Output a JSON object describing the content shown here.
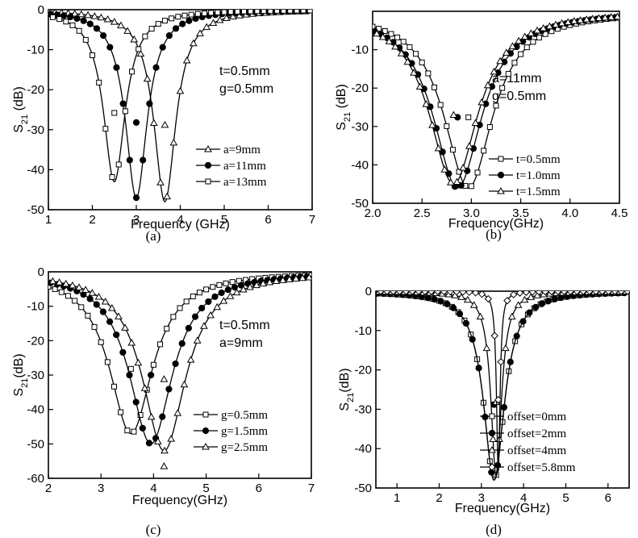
{
  "chart_data": [
    {
      "type": "line",
      "caption": "(a)",
      "xlabel": "Frequency (GHz)",
      "ylabel": "S21 (dB)",
      "ylabel_main": "S",
      "ylabel_sub": "21",
      "ylabel_rest": " (dB)",
      "xlim": [
        1,
        7
      ],
      "ylim": [
        -50,
        0
      ],
      "xticks": [
        1,
        2,
        3,
        4,
        5,
        6,
        7
      ],
      "yticks": [
        0,
        -10,
        -20,
        -30,
        -40,
        -50
      ],
      "annotations": [
        "t=0.5mm",
        "g=0.5mm"
      ],
      "legend_position": "lower-right",
      "series": [
        {
          "name": "a=9mm",
          "marker": "triangle-open",
          "f0": 3.65,
          "depth": 48,
          "gamma": 0.3
        },
        {
          "name": "a=11mm",
          "marker": "circle-filled",
          "f0": 3.0,
          "depth": 47,
          "gamma": 0.3
        },
        {
          "name": "a=13mm",
          "marker": "square-open",
          "f0": 2.5,
          "depth": 43,
          "gamma": 0.3
        }
      ]
    },
    {
      "type": "line",
      "caption": "(b)",
      "xlabel": "Frequency(GHz)",
      "ylabel": "S21 (dB)",
      "ylabel_main": "S",
      "ylabel_sub": "21",
      "ylabel_rest": " (dB)",
      "xlim": [
        2.0,
        4.5
      ],
      "ylim": [
        -50,
        0
      ],
      "xticks": [
        2.0,
        2.5,
        3.0,
        3.5,
        4.0,
        4.5
      ],
      "xtick_labels": [
        "2.0",
        "2.5",
        "3.0",
        "3.5",
        "4.0",
        "4.5"
      ],
      "yticks": [
        -10,
        -20,
        -30,
        -40,
        -50
      ],
      "annotations": [
        "a=11mm",
        "g=0.5mm"
      ],
      "legend_position": "lower-right",
      "series": [
        {
          "name": "t=0.5mm",
          "marker": "square-open",
          "f0": 2.97,
          "depth": 46,
          "gamma": 0.3
        },
        {
          "name": "t=1.0mm",
          "marker": "circle-filled",
          "f0": 2.86,
          "depth": 46,
          "gamma": 0.3
        },
        {
          "name": "t=1.5mm",
          "marker": "triangle-open",
          "f0": 2.82,
          "depth": 45,
          "gamma": 0.3
        }
      ]
    },
    {
      "type": "line",
      "caption": "(c)",
      "xlabel": "Frequency(GHz)",
      "ylabel": "S21(dB)",
      "ylabel_main": "S",
      "ylabel_sub": "21",
      "ylabel_rest": "(dB)",
      "xlim": [
        2,
        7
      ],
      "ylim": [
        -60,
        0
      ],
      "xticks": [
        2,
        3,
        4,
        5,
        6,
        7
      ],
      "yticks": [
        0,
        -10,
        -20,
        -30,
        -40,
        -50,
        -60
      ],
      "annotations": [
        "t=0.5mm",
        "a=9mm"
      ],
      "legend_position": "lower-right",
      "series": [
        {
          "name": "g=0.5mm",
          "marker": "square-open",
          "f0": 3.57,
          "depth": 47,
          "gamma": 0.5
        },
        {
          "name": "g=1.5mm",
          "marker": "circle-filled",
          "f0": 3.95,
          "depth": 50,
          "gamma": 0.5
        },
        {
          "name": "g=2.5mm",
          "marker": "triangle-open",
          "f0": 4.2,
          "depth": 52,
          "gamma": 0.5
        }
      ],
      "outlier_point": {
        "x": 4.2,
        "y": -56.5,
        "marker": "triangle-open"
      }
    },
    {
      "type": "line",
      "caption": "(d)",
      "xlabel": "Frequency(GHz)",
      "ylabel": "S21(dB)",
      "ylabel_main": "S",
      "ylabel_sub": "21",
      "ylabel_rest": "(dB)",
      "xlim": [
        0.5,
        6.5
      ],
      "ylim": [
        -50,
        0
      ],
      "xticks": [
        1,
        2,
        3,
        4,
        5,
        6
      ],
      "yticks": [
        0,
        -10,
        -20,
        -30,
        -40,
        -50
      ],
      "legend_position": "lower-right",
      "series": [
        {
          "name": "offset=0mm",
          "marker": "square-open",
          "f0": 3.3,
          "depth": 48,
          "gamma": 0.3
        },
        {
          "name": "offset=2mm",
          "marker": "circle-filled",
          "f0": 3.3,
          "depth": 48,
          "gamma": 0.3
        },
        {
          "name": "offset=4mm",
          "marker": "triangle-open",
          "f0": 3.35,
          "depth": 47,
          "gamma": 0.15
        },
        {
          "name": "offset=5.8mm",
          "marker": "diamond-open",
          "f0": 3.4,
          "depth": 46,
          "gamma": 0.05
        }
      ]
    }
  ]
}
